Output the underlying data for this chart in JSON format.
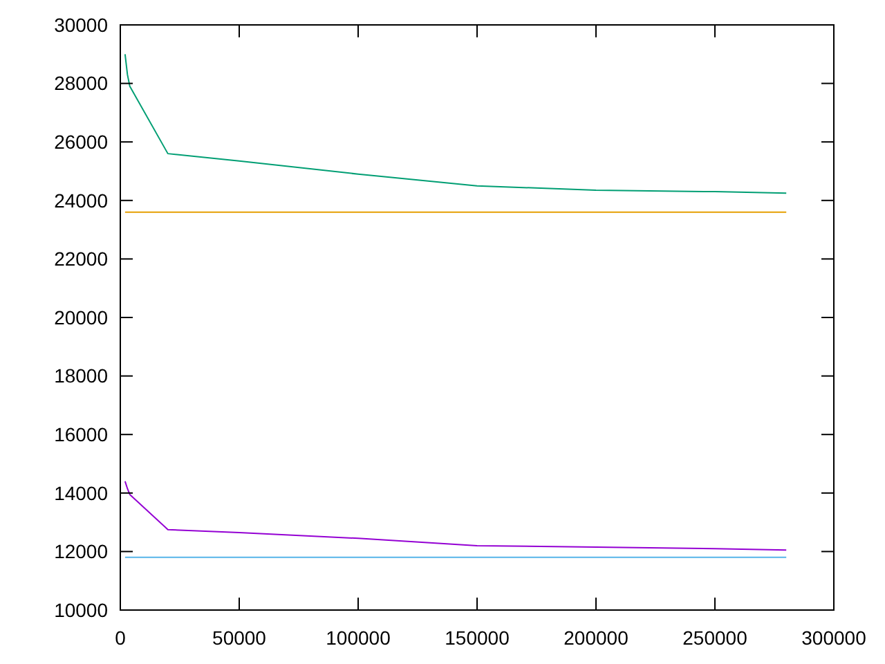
{
  "chart_data": {
    "type": "line",
    "x": [
      2000,
      3000,
      4000,
      20000,
      50000,
      100000,
      150000,
      200000,
      250000,
      280000
    ],
    "series": [
      {
        "color": "#009e73",
        "values": [
          29000,
          28300,
          27900,
          25600,
          25350,
          24900,
          24500,
          24350,
          24300,
          24250
        ]
      },
      {
        "color": "#e69f00",
        "values": [
          23600,
          23600,
          23600,
          23600,
          23600,
          23600,
          23600,
          23600,
          23600,
          23600
        ]
      },
      {
        "color": "#9400d3",
        "values": [
          14400,
          14150,
          13950,
          12750,
          12650,
          12450,
          12200,
          12150,
          12100,
          12050
        ]
      },
      {
        "color": "#56b4e9",
        "values": [
          11800,
          11800,
          11800,
          11800,
          11800,
          11800,
          11800,
          11800,
          11800,
          11800
        ]
      }
    ],
    "xlim": [
      0,
      300000
    ],
    "xticks": [
      0,
      50000,
      100000,
      150000,
      200000,
      250000,
      300000
    ],
    "ylim": [
      10000,
      30000
    ],
    "yticks": [
      10000,
      12000,
      14000,
      16000,
      18000,
      20000,
      22000,
      24000,
      26000,
      28000,
      30000
    ],
    "grid": false
  }
}
